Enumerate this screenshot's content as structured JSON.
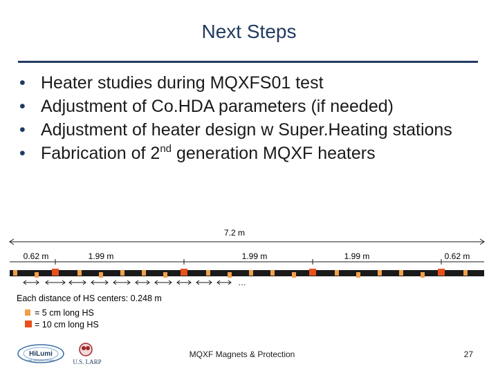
{
  "title": "Next Steps",
  "bullets": [
    {
      "text": "Heater studies during MQXFS01 test"
    },
    {
      "text": "Adjustment of Co.HDA parameters (if needed)"
    },
    {
      "text": "Adjustment of heater design w Super.Heating stations"
    },
    {
      "pre": "Fabrication of 2",
      "sup": "nd",
      "post": " generation MQXF heaters"
    }
  ],
  "diagram": {
    "total_length": "7.2 m",
    "segments": [
      "0.62 m",
      "1.99 m",
      "1.99 m",
      "1.99 m",
      "0.62 m"
    ],
    "ellipsis": "…",
    "hs_distance": "Each distance of HS centers: 0.248 m",
    "legend": [
      {
        "label": "= 5 cm long HS",
        "color": "#f0a04a"
      },
      {
        "label": "= 10 cm long HS",
        "color": "#e8501c"
      }
    ],
    "strip_color": "#1a1a1a"
  },
  "footer": {
    "text": "MQXF Magnets & Protection",
    "page": "27",
    "logo_hilumi": "HiLumi",
    "logo_hilumi_sub": "LHC DESIGN STUDY",
    "logo_larp": "U.S. LARP"
  },
  "colors": {
    "title": "#1f3a5f",
    "accent": "#1f3a5f"
  }
}
